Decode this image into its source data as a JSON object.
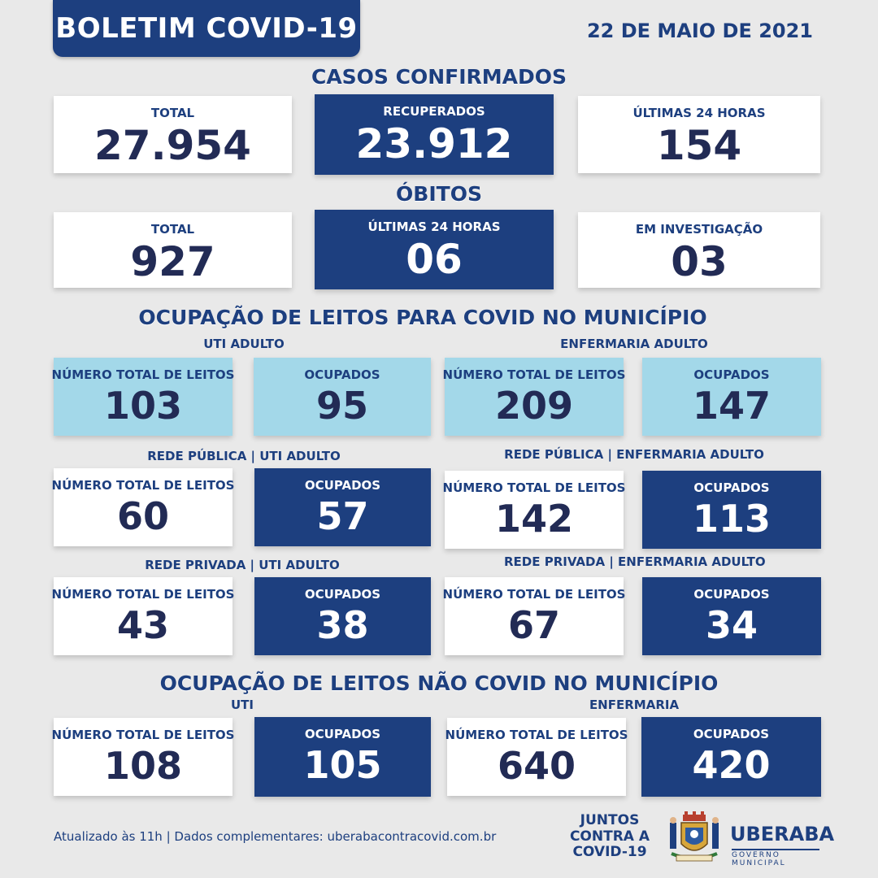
{
  "header": {
    "title": "BOLETIM COVID-19",
    "date": "22 DE MAIO DE 2021"
  },
  "confirmed": {
    "title": "CASOS CONFIRMADOS",
    "total_label": "TOTAL",
    "total_value": "27.954",
    "recovered_label": "RECUPERADOS",
    "recovered_value": "23.912",
    "last24_label": "ÚLTIMAS 24 HORAS",
    "last24_value": "154"
  },
  "deaths": {
    "title": "ÓBITOS",
    "total_label": "TOTAL",
    "total_value": "927",
    "last24_label": "ÚLTIMAS 24 HORAS",
    "last24_value": "06",
    "investigation_label": "EM INVESTIGAÇÃO",
    "investigation_value": "03"
  },
  "covid_beds": {
    "title": "OCUPAÇÃO DE LEITOS PARA COVID NO MUNICÍPIO",
    "uti_label": "UTI ADULTO",
    "ward_label": "ENFERMARIA ADULTO",
    "uti_total_label": "NÚMERO TOTAL DE LEITOS",
    "uti_total": "103",
    "uti_occ_label": "OCUPADOS",
    "uti_occ": "95",
    "ward_total_label": "NÚMERO TOTAL DE LEITOS",
    "ward_total": "209",
    "ward_occ_label": "OCUPADOS",
    "ward_occ": "147",
    "public_uti_label": "REDE PÚBLICA | UTI ADULTO",
    "public_ward_label": "REDE PÚBLICA | ENFERMARIA ADULTO",
    "public_uti_total_label": "NÚMERO TOTAL DE LEITOS",
    "public_uti_total": "60",
    "public_uti_occ_label": "OCUPADOS",
    "public_uti_occ": "57",
    "public_ward_total_label": "NÚMERO TOTAL DE LEITOS",
    "public_ward_total": "142",
    "public_ward_occ_label": "OCUPADOS",
    "public_ward_occ": "113",
    "private_uti_label": "REDE PRIVADA | UTI ADULTO",
    "private_ward_label": "REDE PRIVADA | ENFERMARIA ADULTO",
    "private_uti_total_label": "NÚMERO TOTAL DE LEITOS",
    "private_uti_total": "43",
    "private_uti_occ_label": "OCUPADOS",
    "private_uti_occ": "38",
    "private_ward_total_label": "NÚMERO TOTAL DE LEITOS",
    "private_ward_total": "67",
    "private_ward_occ_label": "OCUPADOS",
    "private_ward_occ": "34"
  },
  "non_covid_beds": {
    "title": "OCUPAÇÃO DE LEITOS NÃO COVID NO MUNICÍPIO",
    "uti_label": "UTI",
    "ward_label": "ENFERMARIA",
    "uti_total_label": "NÚMERO TOTAL DE LEITOS",
    "uti_total": "108",
    "uti_occ_label": "OCUPADOS",
    "uti_occ": "105",
    "ward_total_label": "NÚMERO TOTAL DE LEITOS",
    "ward_total": "640",
    "ward_occ_label": "OCUPADOS",
    "ward_occ": "420"
  },
  "footer": {
    "updated": "Atualizado às 11h | Dados complementares: uberabacontracovid.com.br",
    "campaign_line1": "JUNTOS",
    "campaign_line2": "CONTRA A",
    "campaign_line3": "COVID-19",
    "brand": "UBERABA",
    "brand_sub": "GOVERNO MUNICIPAL"
  },
  "colors": {
    "navy": "#1d3f7f",
    "light_blue": "#a3d8e9",
    "background": "#e9e9e9"
  },
  "icons": {
    "crest": "municipal-coat-of-arms-icon"
  }
}
